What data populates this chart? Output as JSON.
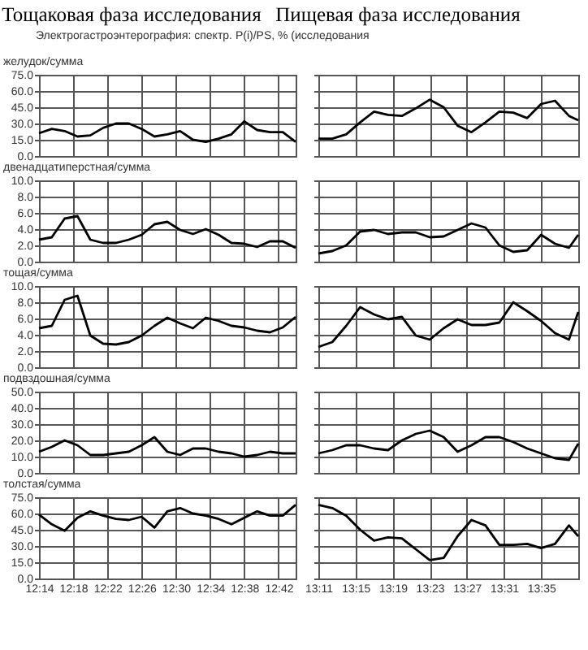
{
  "chart_data": [
    {
      "type": "line",
      "title": "желудок/сумма",
      "annotations": [
        "Тощаковая фаза исследования",
        "Электрогастроэнтерография: спектр. P(i)/PS, %   (исследования"
      ],
      "x": [
        12.2333,
        12.2583,
        12.2833,
        12.3083,
        12.3333,
        12.3583,
        12.3833,
        12.4083,
        12.4333,
        12.4583,
        12.4833,
        12.5083,
        12.5333,
        12.5583,
        12.5833,
        12.6083,
        12.6333,
        12.6583,
        12.6833,
        12.7083,
        12.7333
      ],
      "series": [
        {
          "color": "#000000",
          "values": [
            21,
            25,
            23,
            18,
            19,
            26,
            30,
            30,
            25,
            18,
            20,
            23,
            15,
            13,
            16,
            20,
            32,
            24,
            22,
            22,
            13
          ]
        }
      ],
      "xlim": [
        12.2333,
        12.7333
      ],
      "xticks": [
        {
          "value": 12.2333,
          "label": null
        },
        {
          "value": 12.3,
          "label": null
        },
        {
          "value": 12.3667,
          "label": null
        },
        {
          "value": 12.4333,
          "label": null
        },
        {
          "value": 12.5,
          "label": null
        },
        {
          "value": 12.5667,
          "label": null
        },
        {
          "value": 12.6333,
          "label": null
        },
        {
          "value": 12.7,
          "label": null
        }
      ],
      "ylim": [
        0,
        75
      ],
      "yticks": [
        {
          "value": 0,
          "label": "0.0"
        },
        {
          "value": 15,
          "label": "15.0"
        },
        {
          "value": 30,
          "label": "30.0"
        },
        {
          "value": 45,
          "label": "45.0"
        },
        {
          "value": 60,
          "label": "60.0"
        },
        {
          "value": 75,
          "label": "75.0"
        }
      ],
      "grid": true,
      "tick_labels": "y",
      "line_style": "solid"
    },
    {
      "type": "line",
      "annotations": [
        "Пищевая фаза исследования"
      ],
      "x": [
        13.1833,
        13.2083,
        13.2333,
        13.2583,
        13.2833,
        13.3083,
        13.3333,
        13.3583,
        13.3833,
        13.4083,
        13.4333,
        13.4583,
        13.4833,
        13.5083,
        13.5333,
        13.5583,
        13.5833,
        13.6083,
        13.6333,
        13.65
      ],
      "series": [
        {
          "color": "#000000",
          "values": [
            16,
            16,
            20,
            31,
            41,
            38,
            37,
            44,
            52,
            45,
            28,
            22,
            31,
            41,
            40,
            35,
            48,
            51,
            37,
            33
          ]
        }
      ],
      "xlim": [
        13.1833,
        13.65
      ],
      "xticks": [
        {
          "value": 13.1833,
          "label": null
        },
        {
          "value": 13.25,
          "label": null
        },
        {
          "value": 13.3167,
          "label": null
        },
        {
          "value": 13.3833,
          "label": null
        },
        {
          "value": 13.45,
          "label": null
        },
        {
          "value": 13.5167,
          "label": null
        },
        {
          "value": 13.5833,
          "label": null
        }
      ],
      "ylim": [
        0,
        75
      ],
      "yticks": [
        {
          "value": 0,
          "label": null
        },
        {
          "value": 15,
          "label": null
        },
        {
          "value": 30,
          "label": null
        },
        {
          "value": 45,
          "label": null
        },
        {
          "value": 60,
          "label": null
        },
        {
          "value": 75,
          "label": null
        }
      ],
      "grid": true,
      "tick_labels": false,
      "line_style": "solid"
    },
    {
      "type": "line",
      "title": "двенадцатиперстная/сумма",
      "x": [
        12.2333,
        12.2583,
        12.2833,
        12.3083,
        12.3333,
        12.3583,
        12.3833,
        12.4083,
        12.4333,
        12.4583,
        12.4833,
        12.5083,
        12.5333,
        12.5583,
        12.5833,
        12.6083,
        12.6333,
        12.6583,
        12.6833,
        12.7083,
        12.7333
      ],
      "series": [
        {
          "color": "#000000",
          "values": [
            2.7,
            3.0,
            5.3,
            5.6,
            2.7,
            2.3,
            2.3,
            2.7,
            3.3,
            4.6,
            4.9,
            3.9,
            3.4,
            4.0,
            3.3,
            2.3,
            2.2,
            1.8,
            2.5,
            2.5,
            1.7
          ]
        }
      ],
      "xlim": [
        12.2333,
        12.7333
      ],
      "xticks": [
        {
          "value": 12.2333,
          "label": null
        },
        {
          "value": 12.3,
          "label": null
        },
        {
          "value": 12.3667,
          "label": null
        },
        {
          "value": 12.4333,
          "label": null
        },
        {
          "value": 12.5,
          "label": null
        },
        {
          "value": 12.5667,
          "label": null
        },
        {
          "value": 12.6333,
          "label": null
        },
        {
          "value": 12.7,
          "label": null
        }
      ],
      "ylim": [
        0,
        10
      ],
      "yticks": [
        {
          "value": 0,
          "label": "0.0"
        },
        {
          "value": 2,
          "label": "2.0"
        },
        {
          "value": 4,
          "label": "4.0"
        },
        {
          "value": 6,
          "label": "6.0"
        },
        {
          "value": 8,
          "label": "8.0"
        },
        {
          "value": 10,
          "label": "10.0"
        }
      ],
      "grid": true,
      "tick_labels": "y",
      "line_style": "solid"
    },
    {
      "type": "line",
      "x": [
        13.1833,
        13.2083,
        13.2333,
        13.2583,
        13.2833,
        13.3083,
        13.3333,
        13.3583,
        13.3833,
        13.4083,
        13.4333,
        13.4583,
        13.4833,
        13.5083,
        13.5333,
        13.5583,
        13.5833,
        13.6083,
        13.6333,
        13.65
      ],
      "series": [
        {
          "color": "#000000",
          "values": [
            1.0,
            1.3,
            2.0,
            3.7,
            3.9,
            3.4,
            3.6,
            3.6,
            3.0,
            3.1,
            3.9,
            4.7,
            4.2,
            2.0,
            1.2,
            1.4,
            3.3,
            2.2,
            1.7,
            3.3
          ]
        }
      ],
      "xlim": [
        13.1833,
        13.65
      ],
      "xticks": [
        {
          "value": 13.1833,
          "label": null
        },
        {
          "value": 13.25,
          "label": null
        },
        {
          "value": 13.3167,
          "label": null
        },
        {
          "value": 13.3833,
          "label": null
        },
        {
          "value": 13.45,
          "label": null
        },
        {
          "value": 13.5167,
          "label": null
        },
        {
          "value": 13.5833,
          "label": null
        }
      ],
      "ylim": [
        0,
        10
      ],
      "yticks": [
        {
          "value": 0,
          "label": null
        },
        {
          "value": 2,
          "label": null
        },
        {
          "value": 4,
          "label": null
        },
        {
          "value": 6,
          "label": null
        },
        {
          "value": 8,
          "label": null
        },
        {
          "value": 10,
          "label": null
        }
      ],
      "grid": true,
      "tick_labels": false,
      "line_style": "solid"
    },
    {
      "type": "line",
      "title": "тощая/сумма",
      "x": [
        12.2333,
        12.2583,
        12.2833,
        12.3083,
        12.3333,
        12.3583,
        12.3833,
        12.4083,
        12.4333,
        12.4583,
        12.4833,
        12.5083,
        12.5333,
        12.5583,
        12.5833,
        12.6083,
        12.6333,
        12.6583,
        12.6833,
        12.7083,
        12.7333
      ],
      "series": [
        {
          "color": "#000000",
          "values": [
            4.8,
            5.1,
            8.3,
            8.8,
            3.9,
            2.9,
            2.8,
            3.1,
            3.9,
            5.1,
            6.1,
            5.4,
            4.8,
            6.1,
            5.7,
            5.1,
            4.9,
            4.5,
            4.3,
            4.9,
            6.2
          ]
        }
      ],
      "xlim": [
        12.2333,
        12.7333
      ],
      "xticks": [
        {
          "value": 12.2333,
          "label": null
        },
        {
          "value": 12.3,
          "label": null
        },
        {
          "value": 12.3667,
          "label": null
        },
        {
          "value": 12.4333,
          "label": null
        },
        {
          "value": 12.5,
          "label": null
        },
        {
          "value": 12.5667,
          "label": null
        },
        {
          "value": 12.6333,
          "label": null
        },
        {
          "value": 12.7,
          "label": null
        }
      ],
      "ylim": [
        0,
        10
      ],
      "yticks": [
        {
          "value": 0,
          "label": "0.0"
        },
        {
          "value": 2,
          "label": "2.0"
        },
        {
          "value": 4,
          "label": "4.0"
        },
        {
          "value": 6,
          "label": "6.0"
        },
        {
          "value": 8,
          "label": "8.0"
        },
        {
          "value": 10,
          "label": "10.0"
        }
      ],
      "grid": true,
      "tick_labels": "y",
      "line_style": "solid"
    },
    {
      "type": "line",
      "x": [
        13.1833,
        13.2083,
        13.2333,
        13.2583,
        13.2833,
        13.3083,
        13.3333,
        13.3583,
        13.3833,
        13.4083,
        13.4333,
        13.4583,
        13.4833,
        13.5083,
        13.5333,
        13.5583,
        13.5833,
        13.6083,
        13.6333,
        13.65
      ],
      "series": [
        {
          "color": "#000000",
          "values": [
            2.5,
            3.1,
            5.1,
            7.4,
            6.5,
            5.9,
            6.2,
            3.9,
            3.4,
            4.8,
            5.9,
            5.2,
            5.2,
            5.5,
            8.0,
            6.9,
            5.7,
            4.2,
            3.4,
            6.8
          ]
        }
      ],
      "xlim": [
        13.1833,
        13.65
      ],
      "xticks": [
        {
          "value": 13.1833,
          "label": null
        },
        {
          "value": 13.25,
          "label": null
        },
        {
          "value": 13.3167,
          "label": null
        },
        {
          "value": 13.3833,
          "label": null
        },
        {
          "value": 13.45,
          "label": null
        },
        {
          "value": 13.5167,
          "label": null
        },
        {
          "value": 13.5833,
          "label": null
        }
      ],
      "ylim": [
        0,
        10
      ],
      "yticks": [
        {
          "value": 0,
          "label": null
        },
        {
          "value": 2,
          "label": null
        },
        {
          "value": 4,
          "label": null
        },
        {
          "value": 6,
          "label": null
        },
        {
          "value": 8,
          "label": null
        },
        {
          "value": 10,
          "label": null
        }
      ],
      "grid": true,
      "tick_labels": false,
      "line_style": "solid"
    },
    {
      "type": "line",
      "title": "подвздошная/сумма",
      "x": [
        12.2333,
        12.2583,
        12.2833,
        12.3083,
        12.3333,
        12.3583,
        12.3833,
        12.4083,
        12.4333,
        12.4583,
        12.4833,
        12.5083,
        12.5333,
        12.5583,
        12.5833,
        12.6083,
        12.6333,
        12.6583,
        12.6833,
        12.7083,
        12.7333
      ],
      "series": [
        {
          "color": "#000000",
          "values": [
            13,
            16,
            20,
            17,
            11,
            11,
            12,
            13,
            17,
            22,
            13,
            11,
            15,
            15,
            13,
            12,
            10,
            11,
            13,
            12,
            12
          ]
        }
      ],
      "xlim": [
        12.2333,
        12.7333
      ],
      "xticks": [
        {
          "value": 12.2333,
          "label": null
        },
        {
          "value": 12.3,
          "label": null
        },
        {
          "value": 12.3667,
          "label": null
        },
        {
          "value": 12.4333,
          "label": null
        },
        {
          "value": 12.5,
          "label": null
        },
        {
          "value": 12.5667,
          "label": null
        },
        {
          "value": 12.6333,
          "label": null
        },
        {
          "value": 12.7,
          "label": null
        }
      ],
      "ylim": [
        0,
        50
      ],
      "yticks": [
        {
          "value": 0,
          "label": "0.0"
        },
        {
          "value": 10,
          "label": "10.0"
        },
        {
          "value": 20,
          "label": "20.0"
        },
        {
          "value": 30,
          "label": "30.0"
        },
        {
          "value": 40,
          "label": "40.0"
        },
        {
          "value": 50,
          "label": "50.0"
        }
      ],
      "grid": true,
      "tick_labels": "y",
      "line_style": "solid"
    },
    {
      "type": "line",
      "x": [
        13.1833,
        13.2083,
        13.2333,
        13.2583,
        13.2833,
        13.3083,
        13.3333,
        13.3583,
        13.3833,
        13.4083,
        13.4333,
        13.4583,
        13.4833,
        13.5083,
        13.5333,
        13.5583,
        13.5833,
        13.6083,
        13.6333,
        13.65
      ],
      "series": [
        {
          "color": "#000000",
          "values": [
            12,
            14,
            17,
            17,
            15,
            14,
            20,
            24,
            26,
            22,
            13,
            17,
            22,
            22,
            19,
            15,
            12,
            9,
            8,
            18
          ]
        }
      ],
      "xlim": [
        13.1833,
        13.65
      ],
      "xticks": [
        {
          "value": 13.1833,
          "label": null
        },
        {
          "value": 13.25,
          "label": null
        },
        {
          "value": 13.3167,
          "label": null
        },
        {
          "value": 13.3833,
          "label": null
        },
        {
          "value": 13.45,
          "label": null
        },
        {
          "value": 13.5167,
          "label": null
        },
        {
          "value": 13.5833,
          "label": null
        }
      ],
      "ylim": [
        0,
        50
      ],
      "yticks": [
        {
          "value": 0,
          "label": null
        },
        {
          "value": 10,
          "label": null
        },
        {
          "value": 20,
          "label": null
        },
        {
          "value": 30,
          "label": null
        },
        {
          "value": 40,
          "label": null
        },
        {
          "value": 50,
          "label": null
        }
      ],
      "grid": true,
      "tick_labels": false,
      "line_style": "solid"
    },
    {
      "type": "line",
      "title": "толстая/сумма",
      "x": [
        12.2333,
        12.2583,
        12.2833,
        12.3083,
        12.3333,
        12.3583,
        12.3833,
        12.4083,
        12.4333,
        12.4583,
        12.4833,
        12.5083,
        12.5333,
        12.5583,
        12.5833,
        12.6083,
        12.6333,
        12.6583,
        12.6833,
        12.7083,
        12.7333
      ],
      "series": [
        {
          "color": "#000000",
          "values": [
            59,
            50,
            44,
            56,
            62,
            58,
            55,
            54,
            57,
            47,
            62,
            65,
            60,
            58,
            55,
            50,
            56,
            62,
            58,
            58,
            68
          ]
        }
      ],
      "xlim": [
        12.2333,
        12.7333
      ],
      "xticks": [
        {
          "value": 12.2333,
          "label": "12:14"
        },
        {
          "value": 12.3,
          "label": "12:18"
        },
        {
          "value": 12.3667,
          "label": "12:22"
        },
        {
          "value": 12.4333,
          "label": "12:26"
        },
        {
          "value": 12.5,
          "label": "12:30"
        },
        {
          "value": 12.5667,
          "label": "12:34"
        },
        {
          "value": 12.6333,
          "label": "12:38"
        },
        {
          "value": 12.7,
          "label": "12:42"
        }
      ],
      "ylim": [
        0,
        75
      ],
      "yticks": [
        {
          "value": 0,
          "label": "0.0"
        },
        {
          "value": 15,
          "label": "15.0"
        },
        {
          "value": 30,
          "label": "30.0"
        },
        {
          "value": 45,
          "label": "45.0"
        },
        {
          "value": 60,
          "label": "60.0"
        },
        {
          "value": 75,
          "label": "75.0"
        }
      ],
      "grid": true,
      "line_style": "solid"
    },
    {
      "type": "line",
      "x": [
        13.1833,
        13.2083,
        13.2333,
        13.2583,
        13.2833,
        13.3083,
        13.3333,
        13.3583,
        13.3833,
        13.4083,
        13.4333,
        13.4583,
        13.4833,
        13.5083,
        13.5333,
        13.5583,
        13.5833,
        13.6083,
        13.6333,
        13.65
      ],
      "series": [
        {
          "color": "#000000",
          "values": [
            68,
            65,
            58,
            45,
            35,
            38,
            37,
            27,
            17,
            19,
            39,
            54,
            49,
            31,
            31,
            32,
            28,
            32,
            49,
            39
          ]
        }
      ],
      "xlim": [
        13.1833,
        13.65
      ],
      "xticks": [
        {
          "value": 13.1833,
          "label": "13:11"
        },
        {
          "value": 13.25,
          "label": "13:15"
        },
        {
          "value": 13.3167,
          "label": "13:19"
        },
        {
          "value": 13.3833,
          "label": "13:23"
        },
        {
          "value": 13.45,
          "label": "13:27"
        },
        {
          "value": 13.5167,
          "label": "13:31"
        },
        {
          "value": 13.5833,
          "label": "13:35"
        }
      ],
      "ylim": [
        0,
        75
      ],
      "yticks": [
        {
          "value": 0,
          "label": null
        },
        {
          "value": 15,
          "label": null
        },
        {
          "value": 30,
          "label": null
        },
        {
          "value": 45,
          "label": null
        },
        {
          "value": 60,
          "label": null
        },
        {
          "value": 75,
          "label": null
        }
      ],
      "grid": true,
      "tick_labels": "x",
      "line_style": "solid"
    }
  ]
}
